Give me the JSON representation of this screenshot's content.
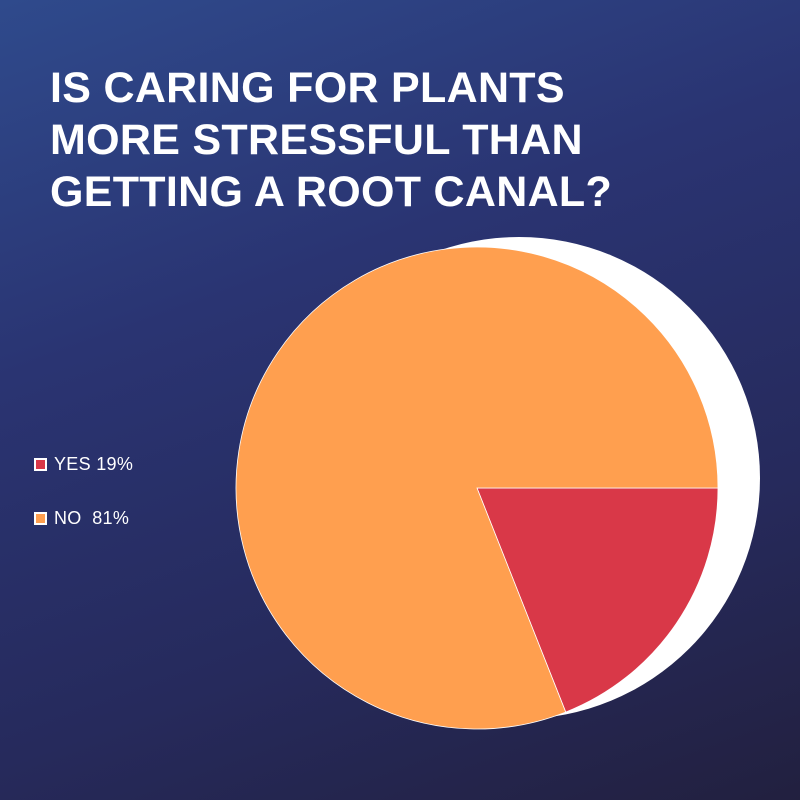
{
  "title_lines": [
    "IS CARING FOR PLANTS",
    "MORE STRESSFUL THAN",
    "GETTING A ROOT CANAL?"
  ],
  "chart_data": {
    "type": "pie",
    "title": "IS CARING FOR PLANTS MORE STRESSFUL THAN GETTING A ROOT CANAL?",
    "legend_position": "left",
    "slices": [
      {
        "label": "YES",
        "value": 19,
        "legend_text": "YES 19%",
        "color": "#d93848"
      },
      {
        "label": "NO",
        "value": 81,
        "legend_text": "NO  81%",
        "color": "#ff9f4f"
      }
    ],
    "shadow_color": "#ffffff"
  }
}
